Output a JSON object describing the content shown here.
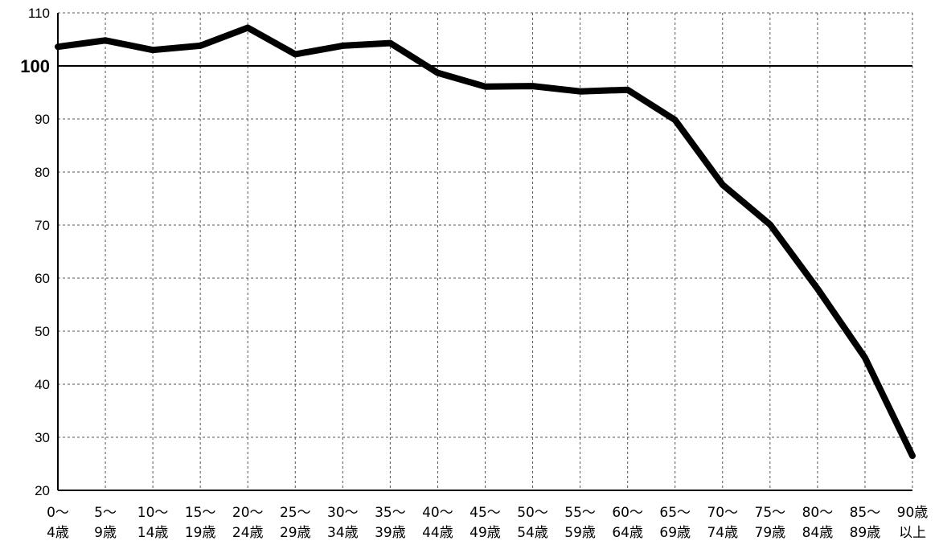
{
  "chart_data": {
    "type": "line",
    "categories": [
      [
        "0～",
        "4歳"
      ],
      [
        "5～",
        "9歳"
      ],
      [
        "10～",
        "14歳"
      ],
      [
        "15～",
        "19歳"
      ],
      [
        "20～",
        "24歳"
      ],
      [
        "25～",
        "29歳"
      ],
      [
        "30～",
        "34歳"
      ],
      [
        "35～",
        "39歳"
      ],
      [
        "40～",
        "44歳"
      ],
      [
        "45～",
        "49歳"
      ],
      [
        "50～",
        "54歳"
      ],
      [
        "55～",
        "59歳"
      ],
      [
        "60～",
        "64歳"
      ],
      [
        "65～",
        "69歳"
      ],
      [
        "70～",
        "74歳"
      ],
      [
        "75～",
        "79歳"
      ],
      [
        "80～",
        "84歳"
      ],
      [
        "85～",
        "89歳"
      ],
      [
        "90歳",
        "以上"
      ]
    ],
    "series": [
      {
        "values": [
          103.6,
          104.8,
          103.0,
          103.8,
          107.2,
          102.2,
          103.8,
          104.3,
          98.7,
          96.1,
          96.2,
          95.2,
          95.5,
          89.8,
          77.6,
          70.1,
          58.0,
          45.0,
          26.5
        ]
      }
    ],
    "yticks": [
      "20",
      "30",
      "40",
      "50",
      "60",
      "70",
      "80",
      "90",
      "100",
      "110"
    ],
    "ylim": [
      20,
      110
    ],
    "reference_line": 100,
    "grid": true,
    "title": "",
    "xlabel": "",
    "ylabel": ""
  }
}
